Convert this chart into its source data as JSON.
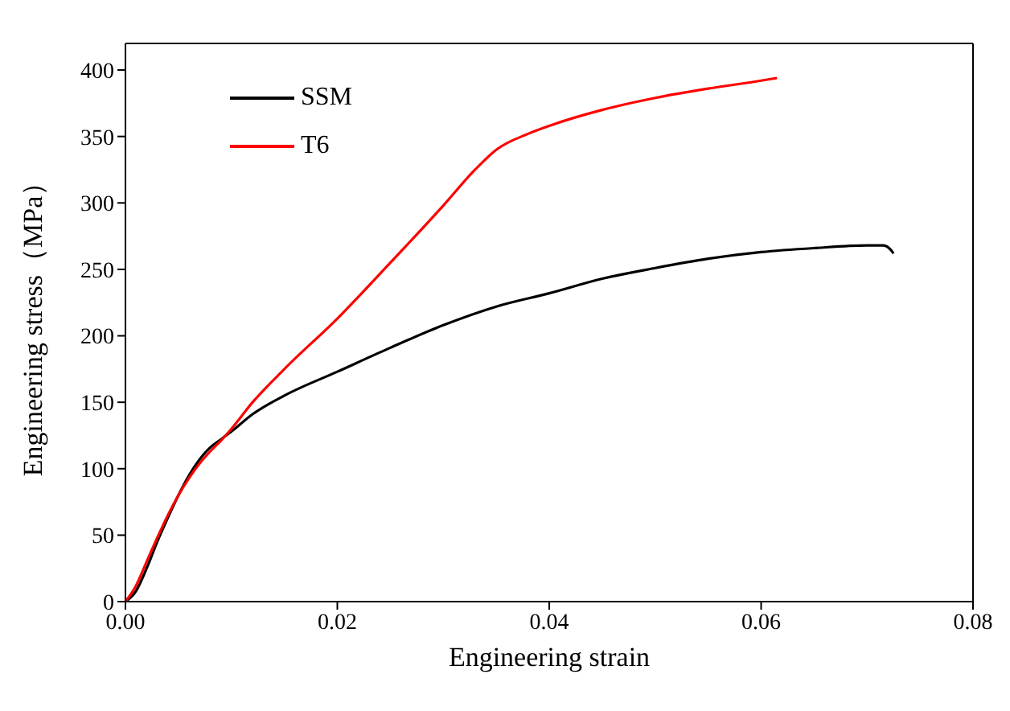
{
  "chart_data": {
    "type": "line",
    "xlabel": "Engineering strain",
    "ylabel": "Engineering stress（MPa）",
    "xlim": [
      0,
      0.08
    ],
    "xticks": [
      {
        "value": 0,
        "label": "0.00"
      },
      {
        "value": 0.02,
        "label": "0.02"
      },
      {
        "value": 0.04,
        "label": "0.04"
      },
      {
        "value": 0.06,
        "label": "0.06"
      },
      {
        "value": 0.08,
        "label": "0.08"
      }
    ],
    "ylim": [
      0,
      420
    ],
    "yticks": [
      0,
      50,
      100,
      150,
      200,
      250,
      300,
      350,
      400
    ],
    "legend": "top left",
    "marker": "none",
    "line_style": "solid",
    "series": [
      {
        "name": "SSM",
        "color": "#000000",
        "x": [
          0,
          0.001,
          0.002,
          0.003,
          0.004,
          0.005,
          0.006,
          0.007,
          0.008,
          0.009,
          0.01,
          0.012,
          0.015,
          0.02,
          0.025,
          0.03,
          0.035,
          0.04,
          0.045,
          0.05,
          0.055,
          0.06,
          0.065,
          0.07,
          0.0715,
          0.0722,
          0.0725
        ],
        "values": [
          0,
          8,
          25,
          45,
          63,
          80,
          95,
          107,
          116,
          122,
          128,
          141,
          155,
          173,
          191,
          208,
          222,
          232,
          243,
          251,
          258,
          263,
          266,
          268,
          268,
          265,
          262
        ]
      },
      {
        "name": "T6",
        "color": "#ff0000",
        "x": [
          0,
          0.001,
          0.002,
          0.003,
          0.004,
          0.005,
          0.006,
          0.007,
          0.008,
          0.009,
          0.01,
          0.012,
          0.015,
          0.02,
          0.025,
          0.03,
          0.033,
          0.035,
          0.038,
          0.04,
          0.045,
          0.05,
          0.055,
          0.06,
          0.0615
        ],
        "values": [
          0,
          12,
          30,
          48,
          65,
          80,
          93,
          104,
          113,
          121,
          130,
          150,
          175,
          213,
          255,
          298,
          325,
          340,
          352,
          358,
          370,
          379,
          386,
          392,
          394
        ]
      }
    ]
  }
}
